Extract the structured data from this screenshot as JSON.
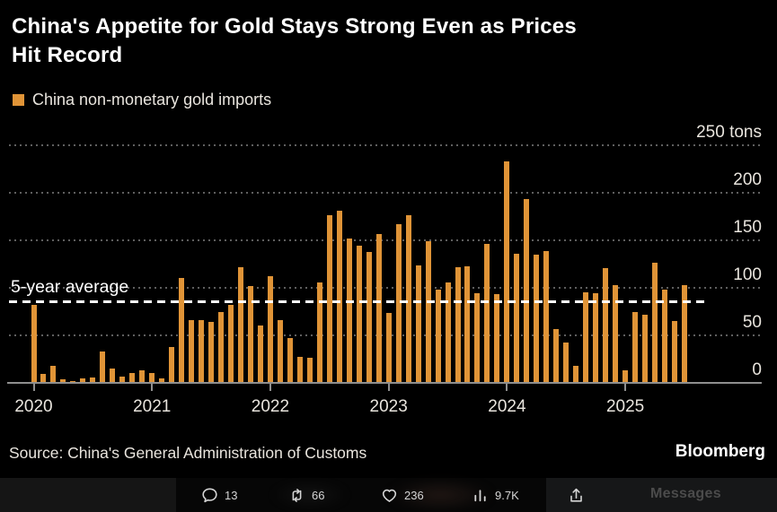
{
  "header": {
    "title_lines": [
      "China's Appetite for Gold Stays Strong Even as Prices",
      "Hit Record"
    ],
    "legend_label": "China non-monetary gold imports"
  },
  "footer": {
    "source": "Source: China's General Administration of Customs",
    "brand": "Bloomberg"
  },
  "social_bar": {
    "reply_count": "13",
    "repost_count": "66",
    "like_count": "236",
    "view_count": "9.7K",
    "messages_label": "Messages"
  },
  "colors": {
    "bar": "#e09437",
    "background": "#000000",
    "title_text": "#ffffff",
    "axis_text": "#e9e5de",
    "gridline": "#5f5f5f",
    "axis_line": "#8f8f8f",
    "reference_line": "#ffffff"
  },
  "chart_data": {
    "type": "bar",
    "title": "China's Appetite for Gold Stays Strong Even as Prices Hit Record",
    "x_frequency": "monthly",
    "x_start": "2020-01",
    "x_years": [
      "2020",
      "2021",
      "2022",
      "2023",
      "2024",
      "2025"
    ],
    "ylabel_unit": "tons",
    "ylim": [
      0,
      250
    ],
    "yticks": [
      {
        "value": 0,
        "label": "0"
      },
      {
        "value": 50,
        "label": "50"
      },
      {
        "value": 100,
        "label": "100"
      },
      {
        "value": 150,
        "label": "150"
      },
      {
        "value": 200,
        "label": "200"
      },
      {
        "value": 250,
        "label": "250 tons"
      }
    ],
    "grid": "dotted-horizontal",
    "axis_side": "right",
    "legend_position": "top-left",
    "reference_line": {
      "label": "5-year average",
      "value": 85
    },
    "series": [
      {
        "name": "China non-monetary gold imports",
        "values": [
          82,
          9,
          18,
          4,
          2,
          5,
          6,
          33,
          15,
          7,
          10,
          13,
          10,
          5,
          38,
          110,
          66,
          66,
          64,
          75,
          82,
          122,
          102,
          60,
          112,
          66,
          47,
          27,
          26,
          106,
          176,
          181,
          152,
          144,
          138,
          157,
          74,
          167,
          176,
          124,
          149,
          98,
          106,
          122,
          123,
          94,
          146,
          93,
          233,
          136,
          193,
          135,
          139,
          57,
          42,
          18,
          95,
          94,
          121,
          103,
          13,
          75,
          72,
          126,
          98,
          65,
          103
        ]
      }
    ],
    "source": "China's General Administration of Customs"
  }
}
